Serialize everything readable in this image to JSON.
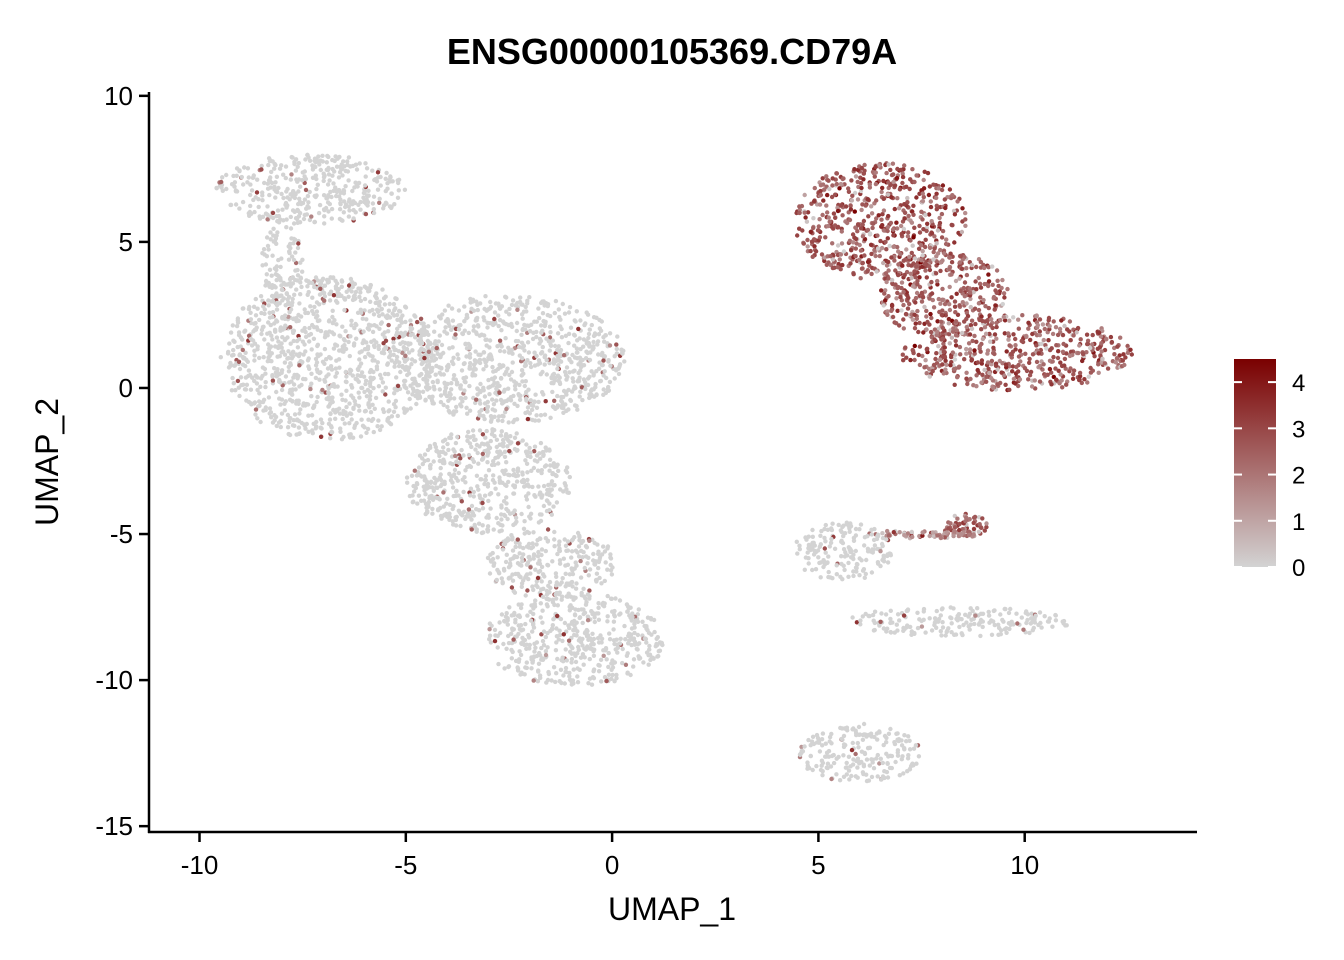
{
  "chart_data": {
    "type": "scatter",
    "title": "ENSG00000105369.CD79A",
    "xlabel": "UMAP_1",
    "ylabel": "UMAP_2",
    "xlim": [
      -11.2,
      14.2
    ],
    "ylim": [
      -15.2,
      10.2
    ],
    "x_ticks": [
      -10,
      -5,
      0,
      5,
      10
    ],
    "x_tick_labels": [
      "-10",
      "-5",
      "0",
      "5",
      "10"
    ],
    "y_ticks": [
      10,
      5,
      0,
      -5,
      -10,
      -15
    ],
    "y_tick_labels": [
      "10",
      "5",
      "0",
      "-5",
      "-10",
      "-15"
    ],
    "grid": false,
    "legend_position": "right",
    "color_scale": {
      "min": 0,
      "max": 4.5,
      "ticks": [
        0,
        1,
        2,
        3,
        4
      ],
      "tick_labels": [
        "0",
        "1",
        "2",
        "3",
        "4"
      ],
      "low_color": "#d3d3d3",
      "high_color": "#7a0000"
    },
    "clusters": [
      {
        "region": "top-left island",
        "cx": -7.3,
        "cy": 6.8,
        "rx": 2.3,
        "ry": 1.2,
        "expression": 0.2
      },
      {
        "region": "top-left bridge",
        "cx": -8.0,
        "cy": 4.2,
        "rx": 0.5,
        "ry": 1.4,
        "expression": 0.05
      },
      {
        "region": "main left mass",
        "cx": -6.9,
        "cy": 1.0,
        "rx": 2.6,
        "ry": 2.8,
        "expression": 0.05
      },
      {
        "region": "main center mass",
        "cx": -2.5,
        "cy": 1.0,
        "rx": 2.8,
        "ry": 2.2,
        "expression": 0.08
      },
      {
        "region": "main lower lobe",
        "cx": -3.0,
        "cy": -3.2,
        "rx": 2.0,
        "ry": 1.8,
        "expression": 0.05
      },
      {
        "region": "lower arm",
        "cx": -1.5,
        "cy": -6.0,
        "rx": 1.6,
        "ry": 1.2,
        "expression": 0.05
      },
      {
        "region": "bottom lobe",
        "cx": -0.9,
        "cy": -8.6,
        "rx": 2.2,
        "ry": 1.6,
        "expression": 0.05
      },
      {
        "region": "B cell cluster upper",
        "cx": 6.5,
        "cy": 5.7,
        "rx": 2.1,
        "ry": 2.0,
        "expression": 2.6
      },
      {
        "region": "B cell cluster body",
        "cx": 8.0,
        "cy": 3.2,
        "rx": 1.6,
        "ry": 1.5,
        "expression": 2.5
      },
      {
        "region": "B cell cluster lower",
        "cx": 9.8,
        "cy": 1.2,
        "rx": 2.8,
        "ry": 1.3,
        "expression": 2.5
      },
      {
        "region": "right small blob",
        "cx": 8.6,
        "cy": -4.7,
        "rx": 0.5,
        "ry": 0.4,
        "expression": 2.4
      },
      {
        "region": "right filament",
        "cx": 7.5,
        "cy": -5.0,
        "rx": 1.3,
        "ry": 0.15,
        "expression": 1.6
      },
      {
        "region": "central web",
        "cx": 5.6,
        "cy": -5.6,
        "rx": 1.2,
        "ry": 1.0,
        "expression": 0.05
      },
      {
        "region": "right streak",
        "cx": 8.4,
        "cy": -8.0,
        "rx": 2.8,
        "ry": 0.5,
        "expression": 0.05
      },
      {
        "region": "bottom cluster",
        "cx": 6.0,
        "cy": -12.5,
        "rx": 1.5,
        "ry": 1.0,
        "expression": 0.15
      }
    ]
  }
}
